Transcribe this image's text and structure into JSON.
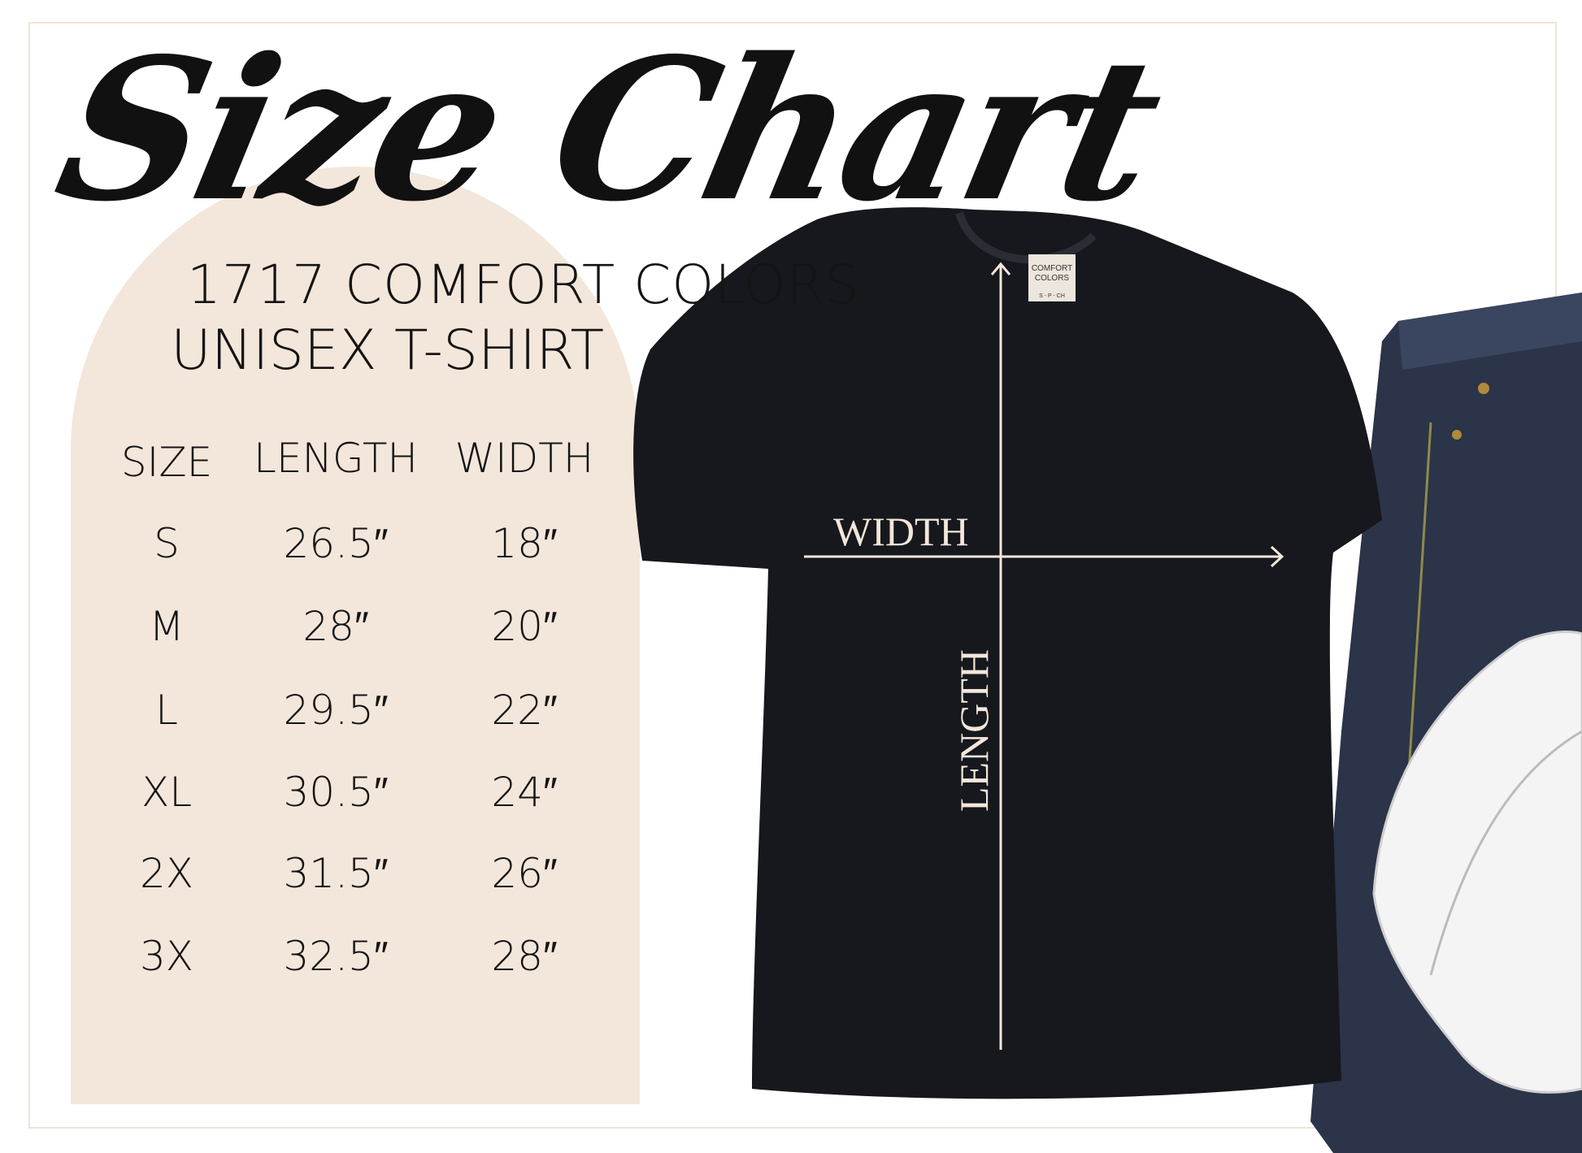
{
  "title": "Size Chart",
  "subtitle_line1": "1717 COMFORT COLORS",
  "subtitle_line2": "UNISEX T-SHIRT",
  "table": {
    "headers": [
      "SIZE",
      "LENGTH",
      "WIDTH"
    ],
    "rows": [
      [
        "S",
        "26.5″",
        "18″"
      ],
      [
        "M",
        "28″",
        "20″"
      ],
      [
        "L",
        "29.5″",
        "22″"
      ],
      [
        "XL",
        "30.5″",
        "24″"
      ],
      [
        "2X",
        "31.5″",
        "26″"
      ],
      [
        "3X",
        "32.5″",
        "28″"
      ]
    ]
  },
  "diagram": {
    "width_label": "WIDTH",
    "length_label": "LENGTH"
  },
  "tag": {
    "brand": "COMFORT COLORS",
    "sizes": "S - P - CH"
  },
  "colors": {
    "panel": "#f3e6da",
    "shirt": "#16181d",
    "text": "#141414",
    "denim": "#2b3448"
  }
}
